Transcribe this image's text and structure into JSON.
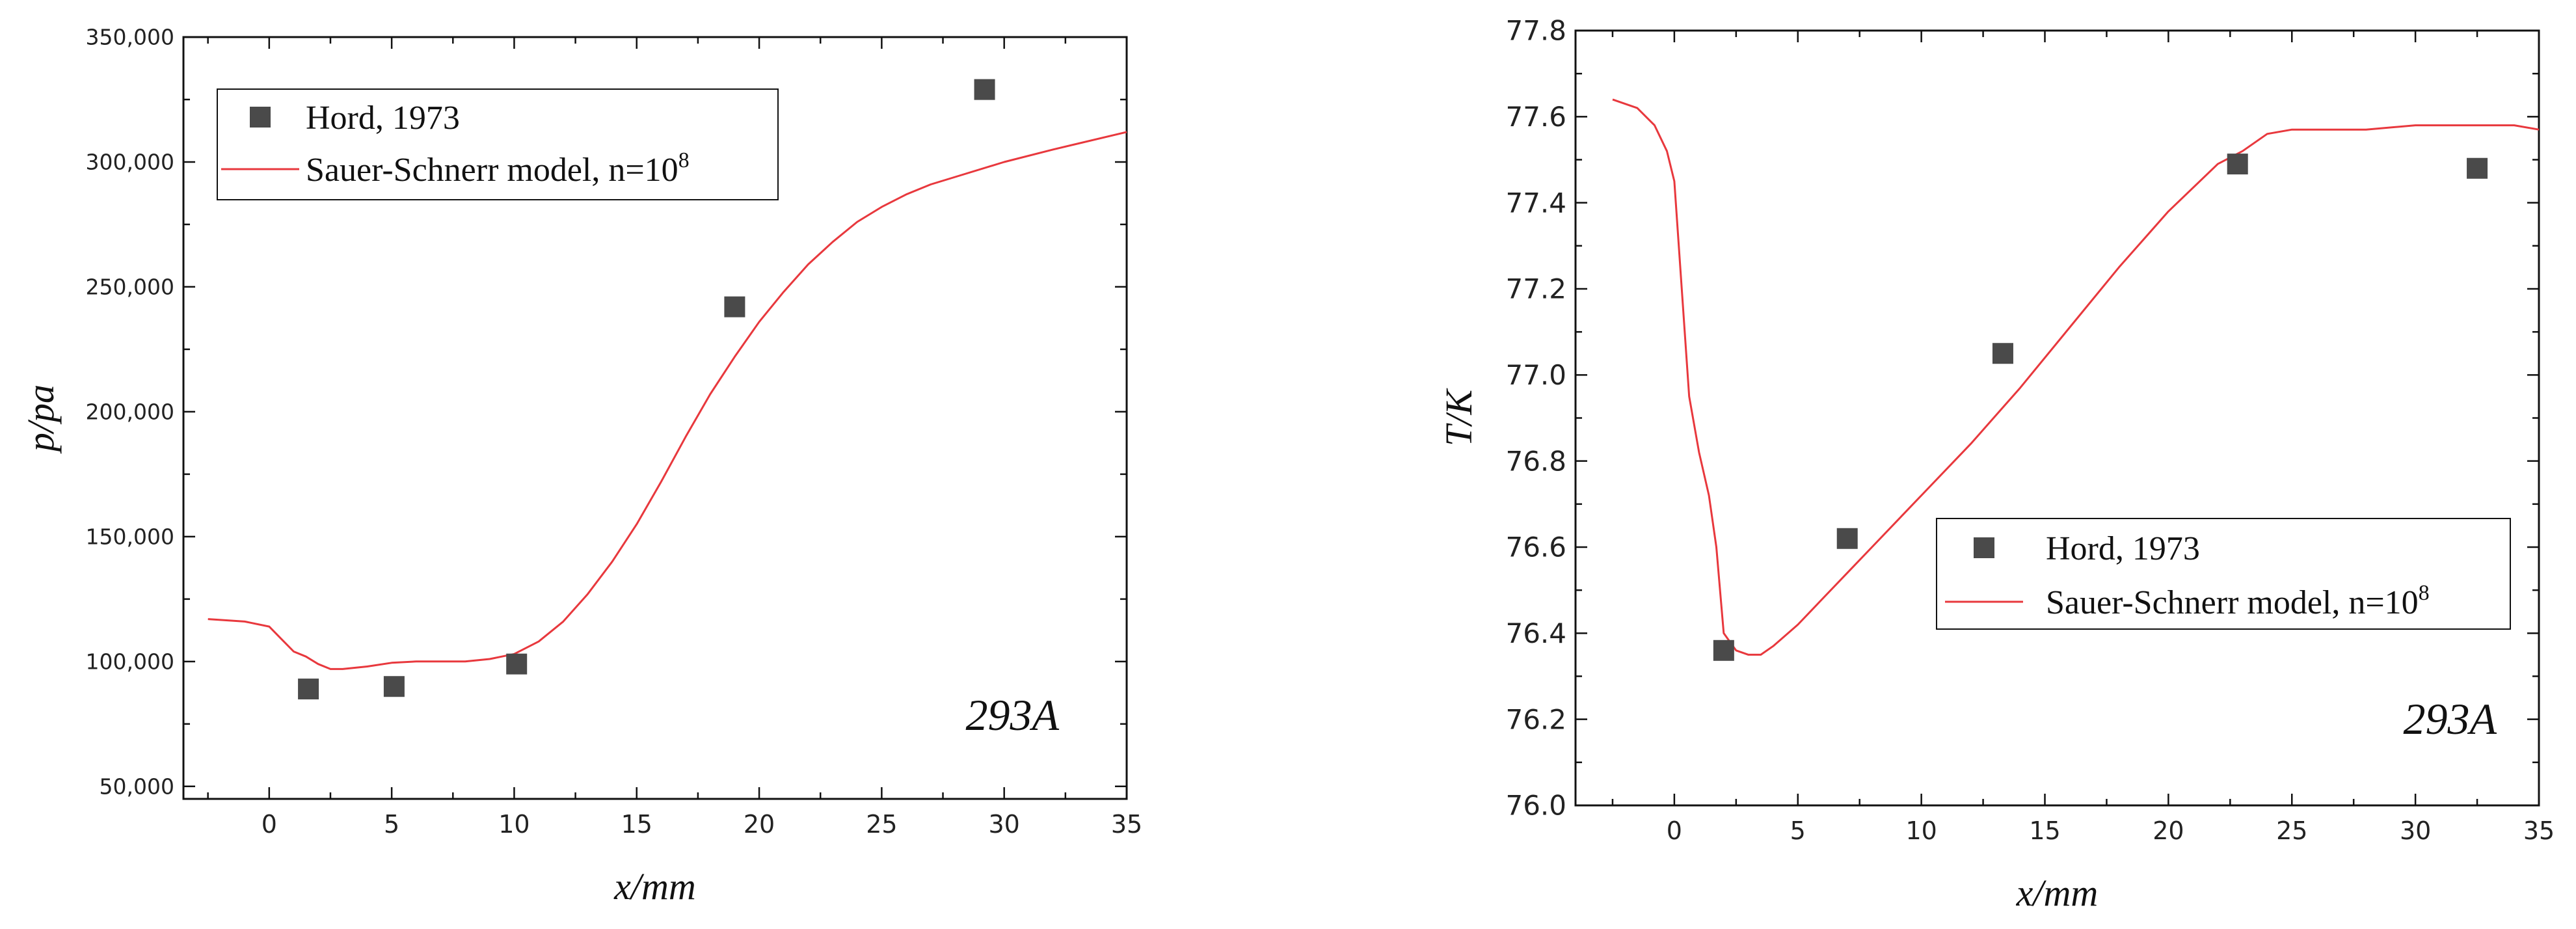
{
  "chart_data": [
    {
      "type": "scatter",
      "xlabel": "x/mm",
      "ylabel": "p/pa",
      "annotation": "293A",
      "xlim": [
        -3.5,
        35
      ],
      "ylim": [
        45000,
        350000
      ],
      "xticks": [
        0,
        5,
        10,
        15,
        20,
        25,
        30,
        35
      ],
      "yticks": [
        50000,
        100000,
        150000,
        200000,
        250000,
        300000,
        350000
      ],
      "ytick_labels": [
        "50,000",
        "100,000",
        "150,000",
        "200,000",
        "250,000",
        "300,000",
        "350,000"
      ],
      "legend_position": "top-left",
      "series": [
        {
          "name": "Hord, 1973",
          "kind": "scatter",
          "color": "#4a4a4a",
          "x": [
            1.6,
            5.1,
            10.1,
            19.0,
            29.2
          ],
          "y": [
            89000,
            90000,
            99000,
            242000,
            329000
          ]
        },
        {
          "name": "Sauer-Schnerr model, n=10",
          "name_superscript": "8",
          "kind": "line",
          "color": "#e8383d",
          "x": [
            -2.5,
            -1.0,
            0.0,
            0.5,
            1.0,
            1.5,
            2.0,
            2.5,
            3.0,
            4.0,
            5.0,
            6.0,
            7.0,
            8.0,
            9.0,
            10.0,
            11.0,
            12.0,
            13.0,
            14.0,
            15.0,
            16.0,
            17.0,
            18.0,
            19.0,
            20.0,
            21.0,
            22.0,
            23.0,
            24.0,
            25.0,
            26.0,
            27.0,
            28.0,
            30.0,
            32.0,
            35.0
          ],
          "y": [
            117000,
            116000,
            114000,
            109000,
            104000,
            102000,
            99000,
            97000,
            97000,
            98000,
            99500,
            100000,
            100000,
            100000,
            101000,
            103000,
            108000,
            116000,
            127000,
            140000,
            155000,
            172000,
            190000,
            207000,
            222000,
            236000,
            248000,
            259000,
            268000,
            276000,
            282000,
            287000,
            291000,
            294000,
            300000,
            305000,
            312000
          ]
        }
      ]
    },
    {
      "type": "scatter",
      "xlabel": "x/mm",
      "ylabel": "T/K",
      "annotation": "293A",
      "xlim": [
        -4,
        35
      ],
      "ylim": [
        76.0,
        77.8
      ],
      "xticks": [
        0,
        5,
        10,
        15,
        20,
        25,
        30,
        35
      ],
      "yticks": [
        76.0,
        76.2,
        76.4,
        76.6,
        76.8,
        77.0,
        77.2,
        77.4,
        77.6,
        77.8
      ],
      "ytick_labels": [
        "76.0",
        "76.2",
        "76.4",
        "76.6",
        "76.8",
        "77.0",
        "77.2",
        "77.4",
        "77.6",
        "77.8"
      ],
      "legend_position": "center-right",
      "series": [
        {
          "name": "Hord, 1973",
          "kind": "scatter",
          "color": "#4a4a4a",
          "x": [
            2.0,
            7.0,
            13.3,
            22.8,
            32.5
          ],
          "y": [
            76.36,
            76.62,
            77.05,
            77.49,
            77.48
          ]
        },
        {
          "name": "Sauer-Schnerr model, n=10",
          "name_superscript": "8",
          "kind": "line",
          "color": "#e8383d",
          "x": [
            -2.5,
            -1.5,
            -0.8,
            -0.3,
            0.0,
            0.3,
            0.6,
            1.0,
            1.4,
            1.7,
            2.0,
            2.5,
            3.0,
            3.5,
            4.0,
            5.0,
            6.0,
            7.0,
            8.0,
            10.0,
            12.0,
            14.0,
            16.0,
            18.0,
            20.0,
            22.0,
            23.0,
            24.0,
            25.0,
            26.0,
            28.0,
            30.0,
            32.0,
            34.0,
            35.0
          ],
          "y": [
            77.64,
            77.62,
            77.58,
            77.52,
            77.45,
            77.2,
            76.95,
            76.82,
            76.72,
            76.6,
            76.4,
            76.36,
            76.35,
            76.35,
            76.37,
            76.42,
            76.48,
            76.54,
            76.6,
            76.72,
            76.84,
            76.97,
            77.11,
            77.25,
            77.38,
            77.49,
            77.52,
            77.56,
            77.57,
            77.57,
            77.57,
            77.58,
            77.58,
            77.58,
            77.57
          ]
        }
      ]
    }
  ]
}
